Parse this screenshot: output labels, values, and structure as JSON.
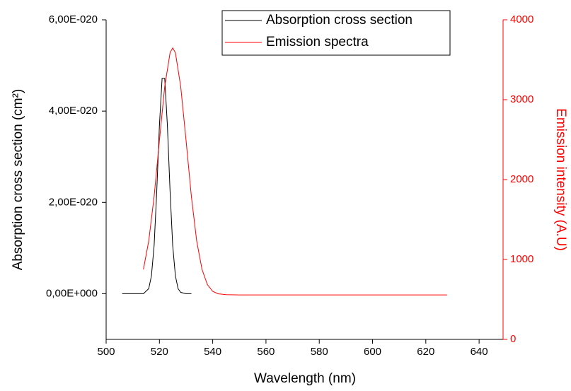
{
  "chart_data": {
    "type": "line",
    "x_label": "Wavelength (nm)",
    "y_label": "Absorption cross section (cm²)",
    "y2_label": "Emission intensity (A.U)",
    "xlim": [
      500,
      649
    ],
    "xticks": [
      500,
      520,
      540,
      560,
      580,
      600,
      620,
      640
    ],
    "ylim": [
      -1e-20,
      6e-20
    ],
    "yticks": [
      {
        "value": 0,
        "label": "0,00E+000"
      },
      {
        "value": 2e-20,
        "label": "2,00E-020"
      },
      {
        "value": 4e-20,
        "label": "4,00E-020"
      },
      {
        "value": 6e-20,
        "label": "6,00E-020"
      }
    ],
    "y2lim": [
      0,
      4000
    ],
    "y2ticks": [
      0,
      1000,
      2000,
      3000,
      4000
    ],
    "legend": "top",
    "series": [
      {
        "name": "Absorption cross section",
        "color": "#000000",
        "x": [
          506,
          510,
          514,
          516,
          517,
          518,
          519,
          520,
          521,
          522,
          523,
          524,
          525,
          526,
          527,
          528,
          530,
          532
        ],
        "values": [
          0,
          0,
          0,
          1.1e-21,
          3.9e-21,
          1.05e-20,
          2.23e-20,
          3.68e-20,
          4.72e-20,
          4.72e-20,
          3.68e-20,
          2.23e-20,
          1.05e-20,
          3.9e-21,
          1.1e-21,
          3e-22,
          0,
          0
        ]
      },
      {
        "name": "Emission spectra",
        "color": "#ff0000",
        "axis": "y2",
        "x": [
          514,
          516,
          518,
          520,
          522,
          524,
          525,
          526,
          528,
          530,
          532,
          534,
          536,
          538,
          540,
          542,
          545,
          550,
          628
        ],
        "values": [
          876,
          1231,
          1787,
          2488,
          3165,
          3589,
          3647,
          3589,
          3165,
          2488,
          1787,
          1231,
          876,
          686,
          602,
          571,
          559,
          557,
          557
        ]
      }
    ]
  }
}
